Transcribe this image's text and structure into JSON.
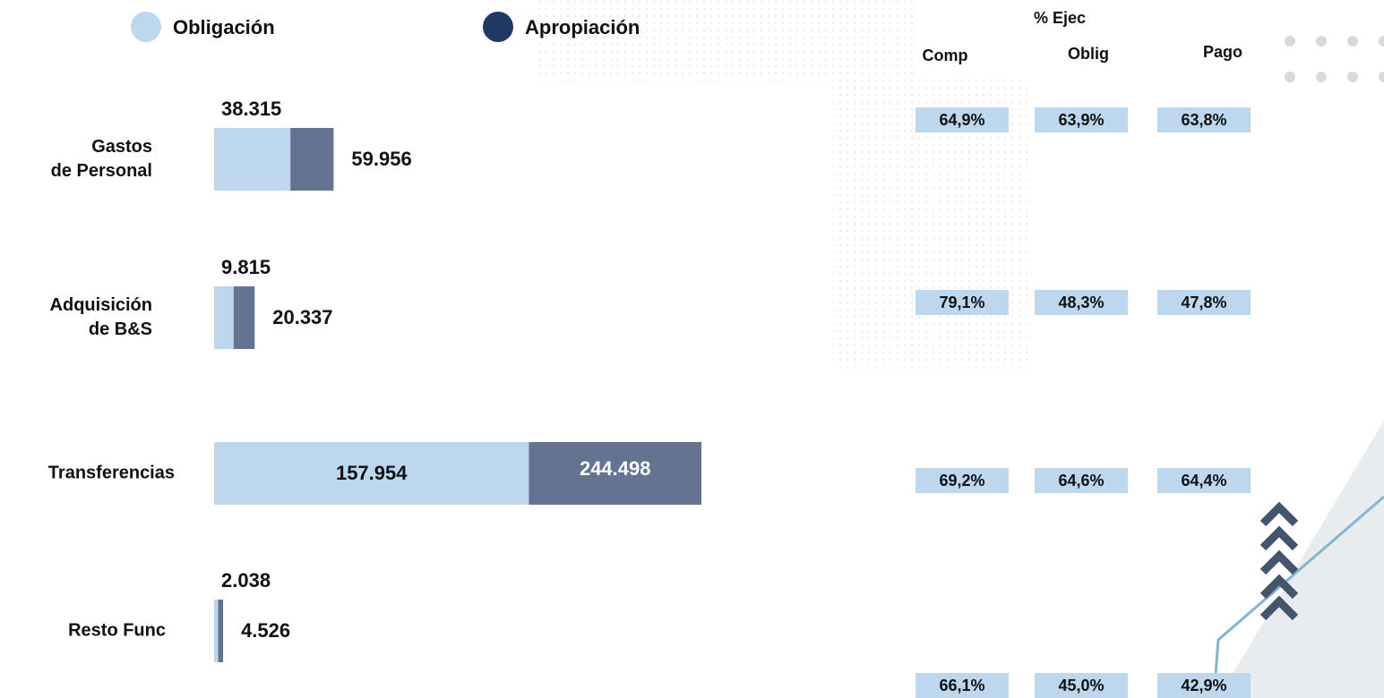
{
  "chart_data": {
    "type": "overlay-bar",
    "orientation": "horizontal",
    "categories": [
      "Gastos\nde Personal",
      "Adquisición\nde B&S",
      "Transferencias",
      "Resto Func"
    ],
    "series": [
      {
        "name": "Obligación",
        "color": "#bdd7ee",
        "legend_color": "#bdd7ee",
        "values": [
          38315,
          9815,
          157954,
          2038
        ],
        "value_labels": [
          "38.315",
          "9.815",
          "157.954",
          "2.038"
        ]
      },
      {
        "name": "Apropiación",
        "color": "#637391",
        "legend_color": "#1f3864",
        "values": [
          59956,
          20337,
          244498,
          4526
        ],
        "value_labels": [
          "59.956",
          "20.337",
          "244.498",
          "4.526"
        ]
      }
    ]
  },
  "execution_table": {
    "title": "% Ejec",
    "columns": [
      "Comp",
      "Oblig",
      "Pago"
    ],
    "rows": [
      [
        "64,9%",
        "63,9%",
        "63,8%"
      ],
      [
        "79,1%",
        "48,3%",
        "47,8%"
      ],
      [
        "69,2%",
        "64,6%",
        "64,4%"
      ],
      [
        "66,1%",
        "45,0%",
        "42,9%"
      ]
    ]
  }
}
